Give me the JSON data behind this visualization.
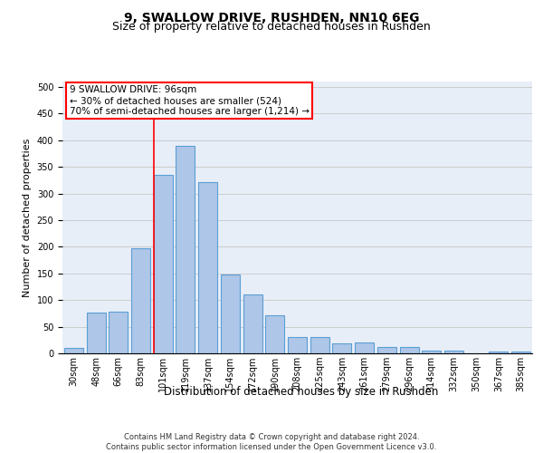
{
  "title": "9, SWALLOW DRIVE, RUSHDEN, NN10 6EG",
  "subtitle": "Size of property relative to detached houses in Rushden",
  "xlabel": "Distribution of detached houses by size in Rushden",
  "ylabel": "Number of detached properties",
  "bar_labels": [
    "30sqm",
    "48sqm",
    "66sqm",
    "83sqm",
    "101sqm",
    "119sqm",
    "137sqm",
    "154sqm",
    "172sqm",
    "190sqm",
    "208sqm",
    "225sqm",
    "243sqm",
    "261sqm",
    "279sqm",
    "296sqm",
    "314sqm",
    "332sqm",
    "350sqm",
    "367sqm",
    "385sqm"
  ],
  "bar_values": [
    10,
    77,
    78,
    198,
    335,
    390,
    321,
    148,
    110,
    72,
    30,
    30,
    18,
    20,
    12,
    12,
    5,
    5,
    0,
    3,
    3
  ],
  "bar_color": "#aec6e8",
  "bar_edgecolor": "#5a9fd4",
  "bar_linewidth": 0.8,
  "vline_pos": 3.575,
  "vline_color": "red",
  "vline_linewidth": 1.2,
  "annotation_text": "9 SWALLOW DRIVE: 96sqm\n← 30% of detached houses are smaller (524)\n70% of semi-detached houses are larger (1,214) →",
  "annotation_box_edgecolor": "red",
  "annotation_box_facecolor": "white",
  "ylim": [
    0,
    510
  ],
  "yticks": [
    0,
    50,
    100,
    150,
    200,
    250,
    300,
    350,
    400,
    450,
    500
  ],
  "grid_color": "#cccccc",
  "bg_color": "#e8eef8",
  "footer_text": "Contains HM Land Registry data © Crown copyright and database right 2024.\nContains public sector information licensed under the Open Government Licence v3.0.",
  "title_fontsize": 10,
  "subtitle_fontsize": 9,
  "ylabel_fontsize": 8,
  "xlabel_fontsize": 8.5,
  "tick_fontsize": 7,
  "annotation_fontsize": 7.5,
  "footer_fontsize": 6
}
